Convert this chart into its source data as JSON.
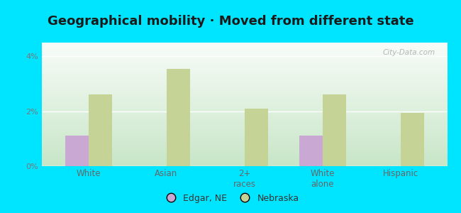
{
  "title": "Geographical mobility · Moved from different state",
  "categories": [
    "White",
    "Asian",
    "2+\nraces",
    "White\nalone",
    "Hispanic"
  ],
  "edgar_ne": [
    1.1,
    0.0,
    0.0,
    1.1,
    0.0
  ],
  "nebraska": [
    2.6,
    3.55,
    2.1,
    2.6,
    1.95
  ],
  "edgar_color": "#c9a8d4",
  "nebraska_color": "#c5d496",
  "bg_top_color": "#f0f5ee",
  "bg_bottom_color": "#d6ecd6",
  "outer_bg": "#00e5ff",
  "ylim": [
    0,
    4.5
  ],
  "yticks": [
    0,
    2,
    4
  ],
  "ytick_labels": [
    "0%",
    "2%",
    "4%"
  ],
  "bar_width": 0.3,
  "title_fontsize": 13,
  "legend_labels": [
    "Edgar, NE",
    "Nebraska"
  ],
  "watermark": "City-Data.com"
}
